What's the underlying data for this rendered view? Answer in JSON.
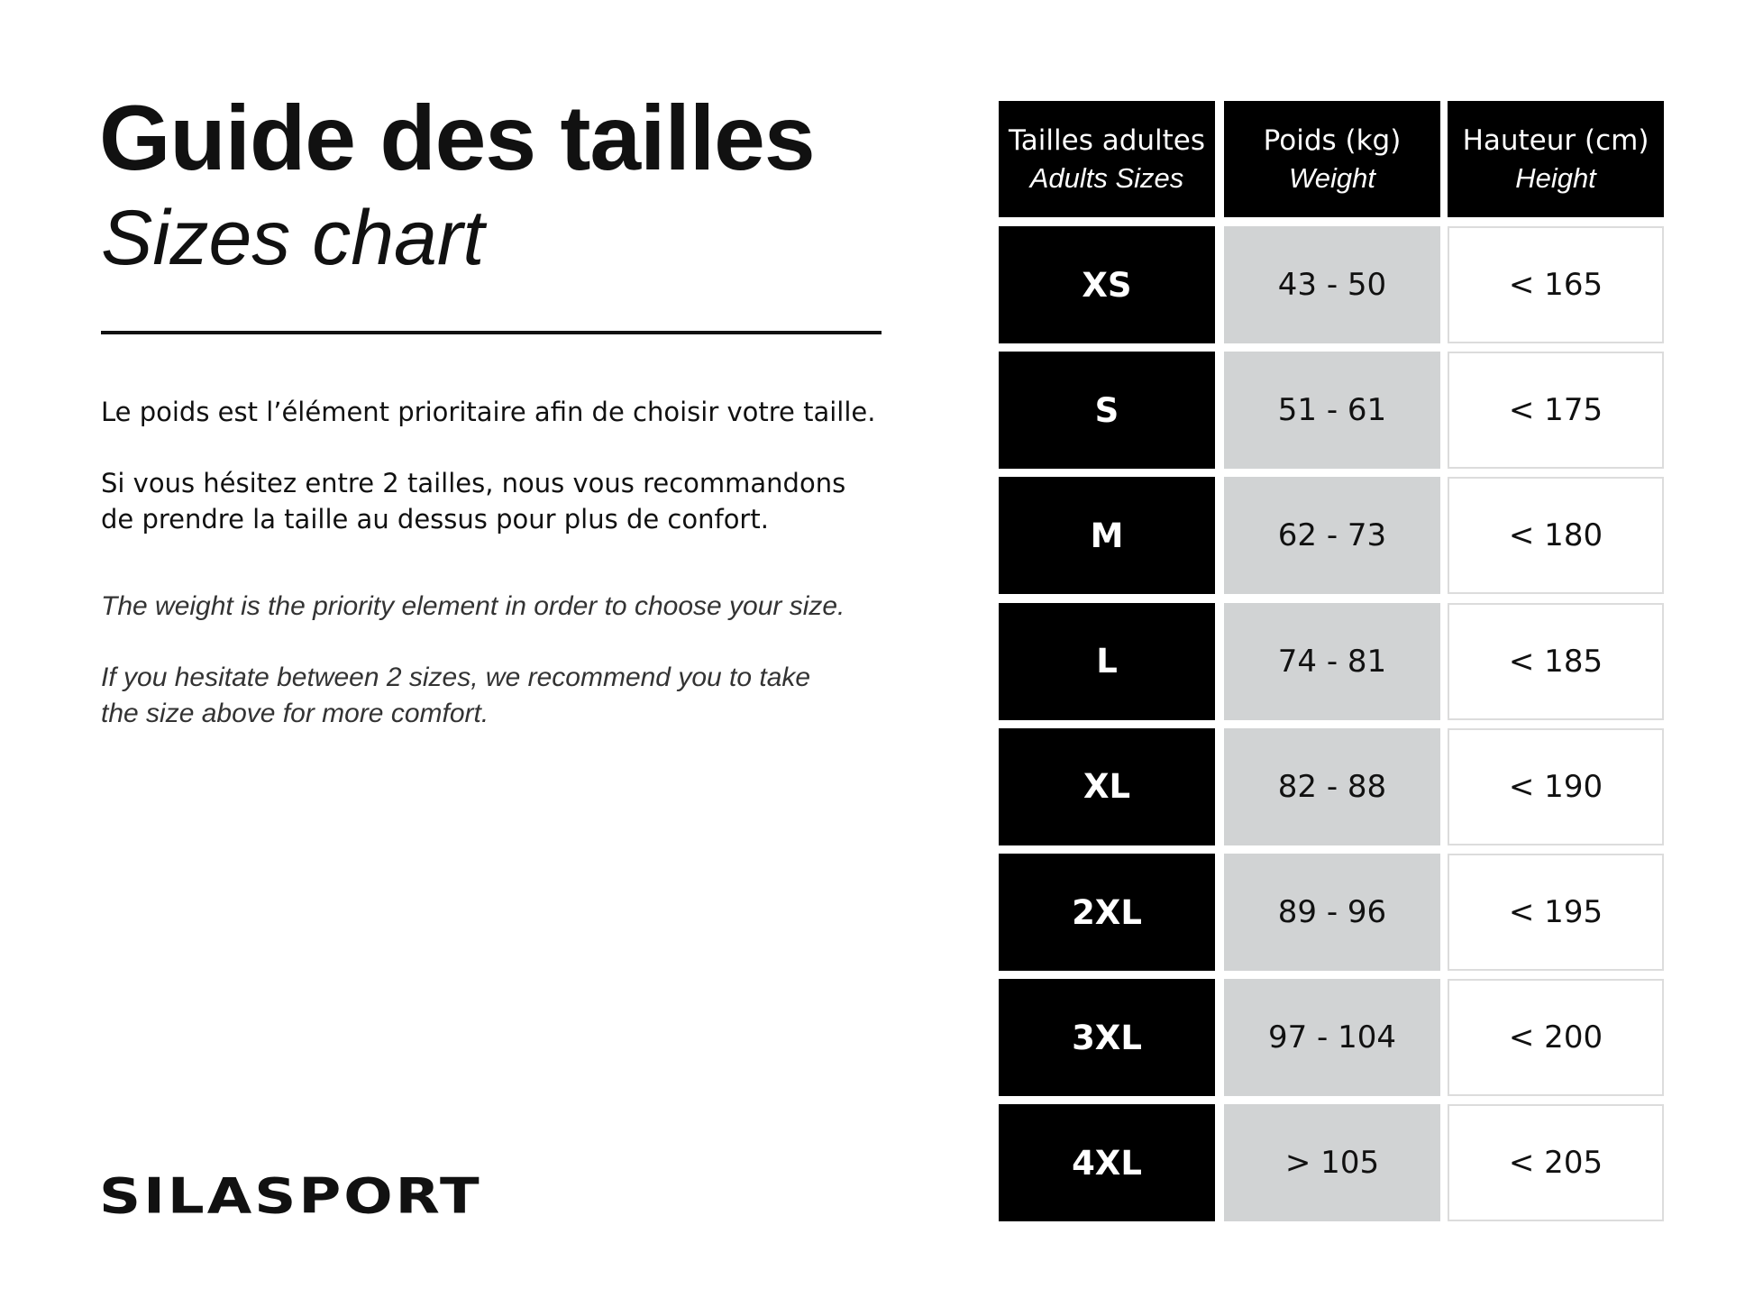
{
  "header": {
    "title": "Guide des tailles",
    "subtitle": "Sizes chart"
  },
  "text": {
    "fr": [
      [
        "Le poids est l’élément prioritaire afin de choisir votre taille."
      ],
      [
        "Si vous hésitez entre 2 tailles, nous vous recommandons",
        "de prendre la taille au dessus pour plus de confort."
      ]
    ],
    "en": [
      [
        "The weight is the priority element in order to choose your size."
      ],
      [
        "If you hesitate between 2 sizes, we recommend you to take",
        "the size above for more comfort."
      ]
    ]
  },
  "table": {
    "columns": [
      {
        "fr": "Tailles adultes",
        "en": "Adults Sizes"
      },
      {
        "fr": "Poids (kg)",
        "en": "Weight"
      },
      {
        "fr": "Hauteur (cm)",
        "en": "Height"
      }
    ],
    "rows": [
      [
        "XS",
        "43 - 50",
        "< 165"
      ],
      [
        "S",
        "51 - 61",
        "< 175"
      ],
      [
        "M",
        "62 - 73",
        "< 180"
      ],
      [
        "L",
        "74 - 81",
        "< 185"
      ],
      [
        "XL",
        "82 - 88",
        "< 190"
      ],
      [
        "2XL",
        "89 - 96",
        "< 195"
      ],
      [
        "3XL",
        "97 - 104",
        "< 200"
      ],
      [
        "4XL",
        "> 105",
        "< 205"
      ]
    ]
  },
  "logo": "SILASPORT"
}
